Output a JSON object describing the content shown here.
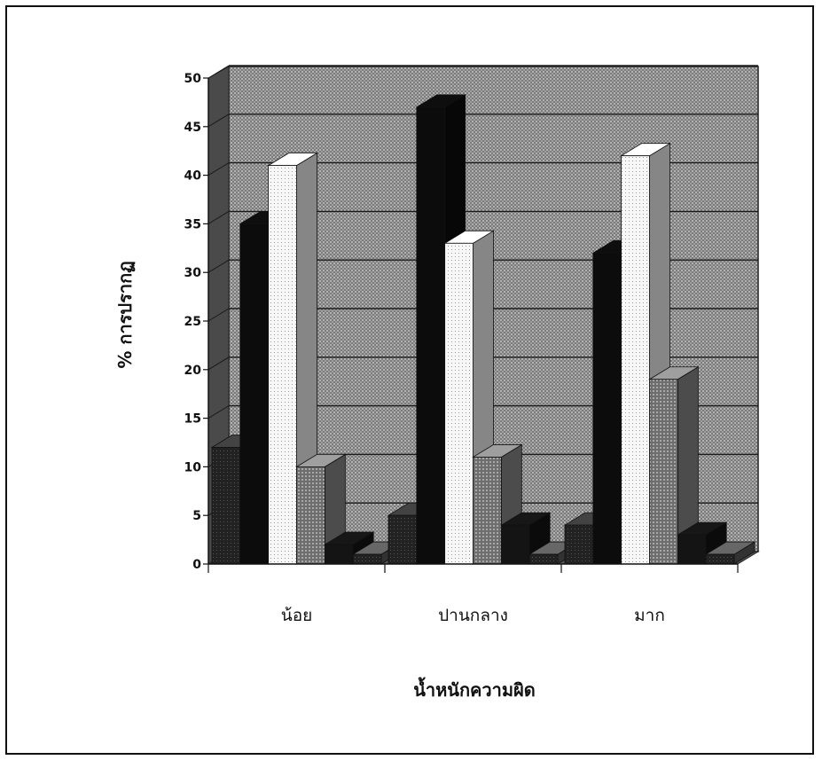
{
  "chart_data": {
    "type": "bar",
    "style": "3d-clustered-column",
    "xlabel": "น้ำหนักความผิด",
    "ylabel": "% การปรากฏ",
    "ylim": [
      0,
      50
    ],
    "yticks": [
      "0",
      "5",
      "10",
      "15",
      "20",
      "25",
      "30",
      "35",
      "40",
      "45",
      "50"
    ],
    "grid": true,
    "legend": "none",
    "categories": [
      "น้อย",
      "ปานกลาง",
      "มาก"
    ],
    "series": [
      {
        "values": [
          12,
          5,
          4
        ],
        "fill": "#3a3a3a"
      },
      {
        "values": [
          35,
          47,
          32
        ],
        "fill": "#0c0c0c"
      },
      {
        "values": [
          41,
          33,
          42
        ],
        "fill": "#f4f4f4"
      },
      {
        "values": [
          10,
          11,
          19
        ],
        "fill": "#8a8a8a"
      },
      {
        "values": [
          2,
          4,
          3
        ],
        "fill": "#141414"
      },
      {
        "values": [
          1,
          1,
          1
        ],
        "fill": "#5a5a5a"
      }
    ]
  }
}
